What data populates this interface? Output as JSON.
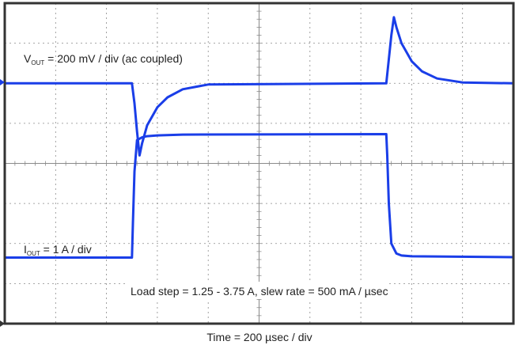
{
  "chart_data": {
    "type": "line",
    "grid": true,
    "divisions": {
      "x": 10,
      "y": 8
    },
    "colors": {
      "trace": "#1a3ee8",
      "grid": "#8a8a8a",
      "frame": "#333333",
      "text": "#222222"
    },
    "annotations": {
      "vout_prefix": "V",
      "vout_sub": "OUT",
      "vout_rest": " = 200 mV / div (ac coupled)",
      "iout_prefix": "I",
      "iout_sub": "OUT",
      "iout_rest": " = 1 A / div",
      "load_step": "Load step = 1.25 - 3.75 A, slew rate = 500 mA / µsec",
      "time_label": "Time = 200 µsec / div"
    },
    "series": [
      {
        "channel": "vout",
        "x_div": [
          0,
          2.5,
          2.55,
          2.6,
          2.65,
          2.7,
          2.8,
          3.0,
          3.2,
          3.5,
          4.0,
          7.5,
          7.55,
          7.6,
          7.65,
          7.7,
          7.8,
          8.0,
          8.2,
          8.5,
          9.0,
          10
        ],
        "y_div": [
          6.0,
          6.0,
          5.5,
          4.8,
          4.2,
          4.5,
          4.95,
          5.4,
          5.65,
          5.85,
          5.97,
          6.0,
          6.6,
          7.2,
          7.65,
          7.4,
          7.0,
          6.55,
          6.3,
          6.12,
          6.02,
          6.0
        ]
      },
      {
        "channel": "iout",
        "x_div": [
          0,
          2.5,
          2.52,
          2.55,
          2.6,
          2.7,
          2.8,
          3.0,
          3.5,
          7.5,
          7.52,
          7.55,
          7.6,
          7.7,
          7.8,
          8.0,
          10
        ],
        "y_div": [
          1.65,
          1.65,
          2.5,
          3.8,
          4.58,
          4.65,
          4.68,
          4.7,
          4.72,
          4.73,
          4.2,
          3.0,
          2.0,
          1.75,
          1.7,
          1.68,
          1.66
        ]
      }
    ]
  }
}
